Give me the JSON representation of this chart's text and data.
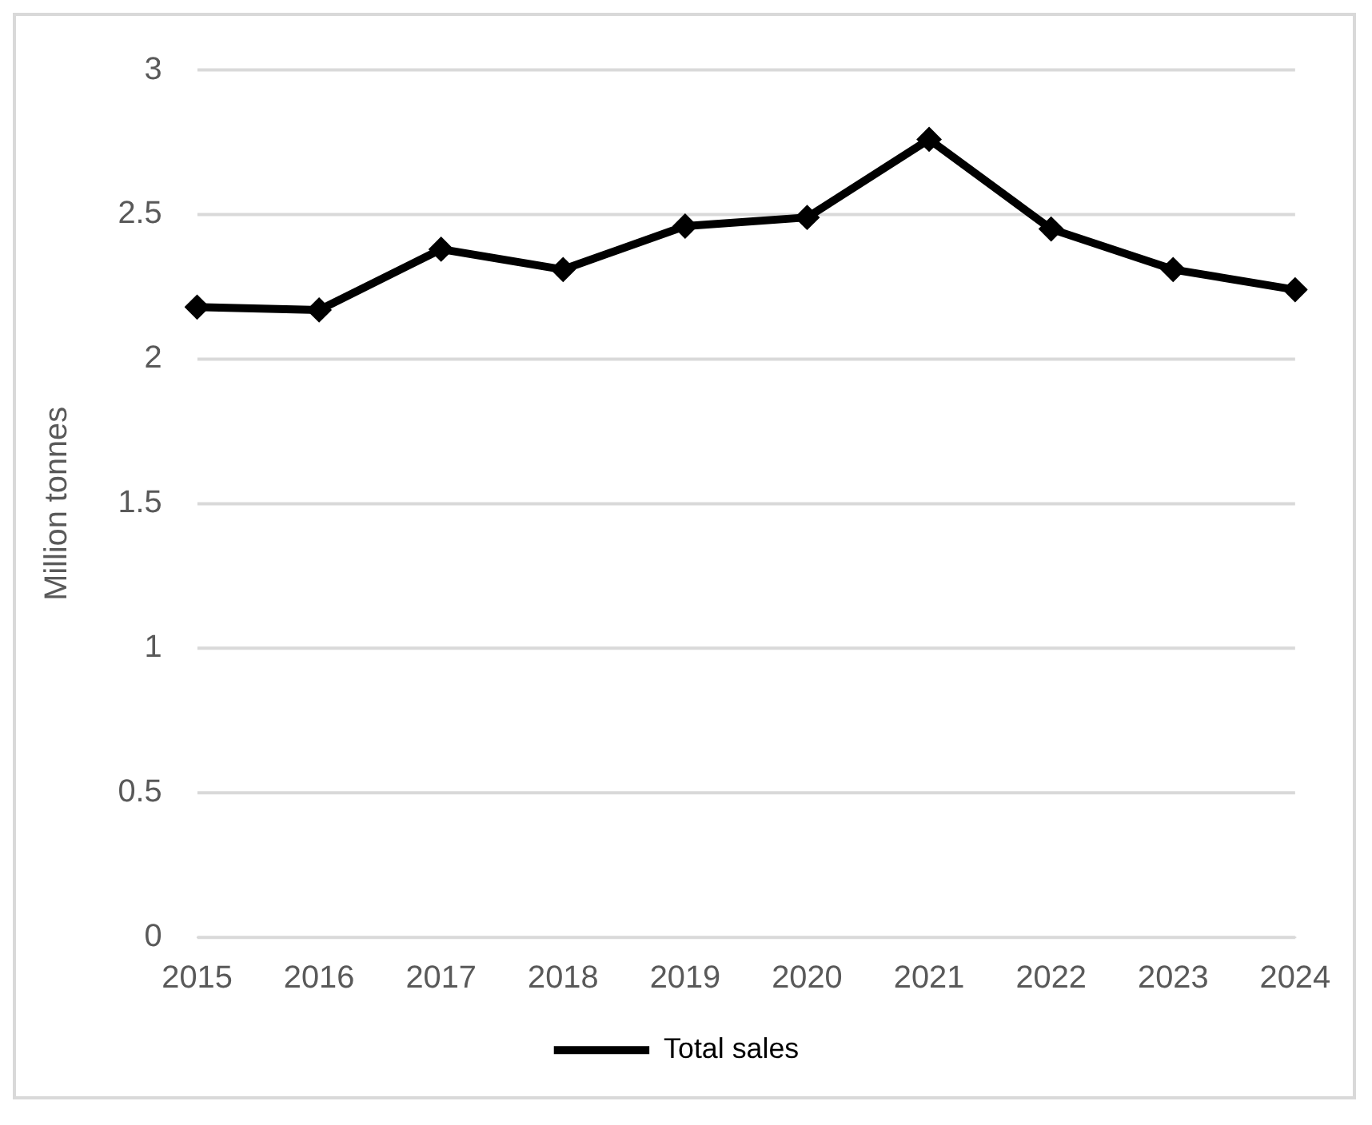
{
  "chart_data": {
    "type": "line",
    "ylabel": "Million tonnes",
    "categories": [
      "2015",
      "2016",
      "2017",
      "2018",
      "2019",
      "2020",
      "2021",
      "2022",
      "2023",
      "2024"
    ],
    "series": [
      {
        "name": "Total sales",
        "color": "#000000",
        "values": [
          2.18,
          2.17,
          2.38,
          2.31,
          2.46,
          2.49,
          2.76,
          2.45,
          2.31,
          2.24
        ]
      }
    ],
    "ylim": [
      0,
      3
    ],
    "yticks": [
      0,
      0.5,
      1,
      1.5,
      2,
      2.5,
      3
    ],
    "grid": "y",
    "legend": "bottom",
    "marker": "diamond",
    "line_style": "solid"
  }
}
